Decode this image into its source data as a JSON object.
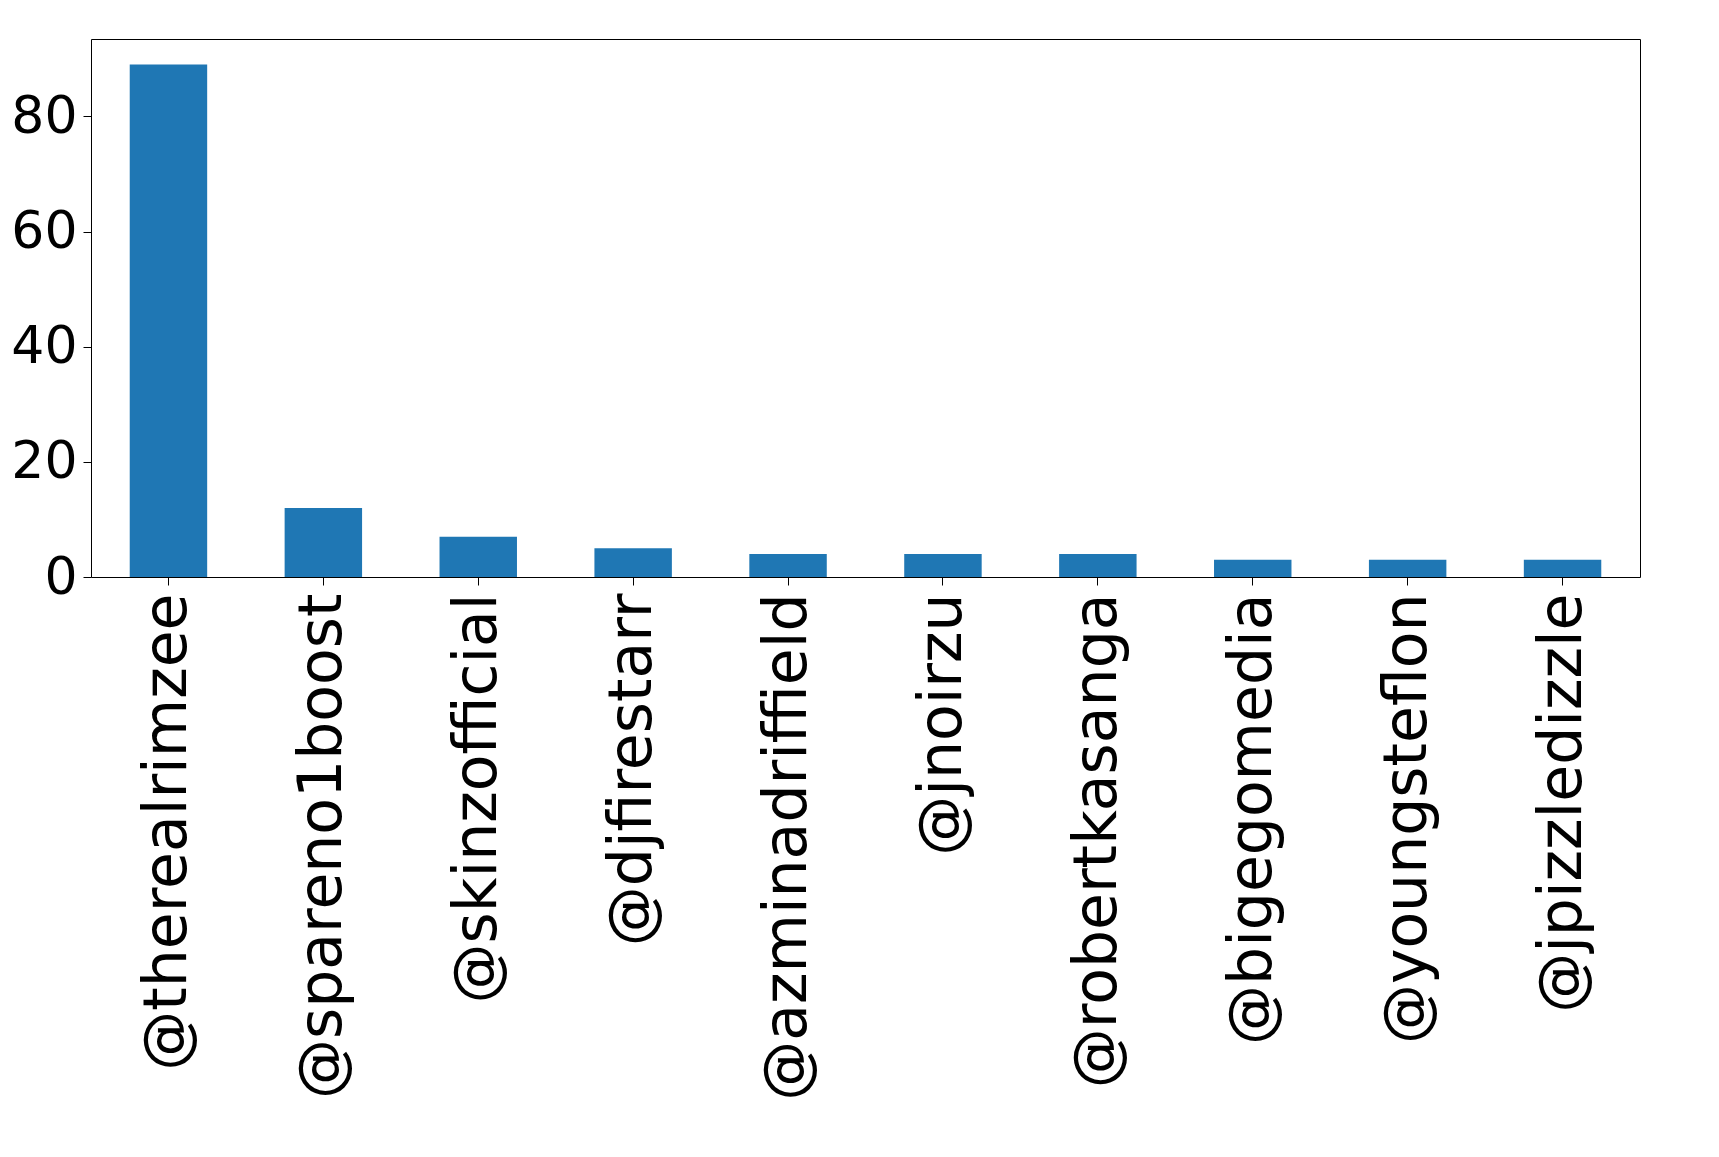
{
  "chart_data": {
    "type": "bar",
    "categories": [
      "@therealrimzee",
      "@spareno1boost",
      "@skinzofficial",
      "@djfirestarr",
      "@azminadriffield",
      "@jnoirzu",
      "@robertkasanga",
      "@bigegomedia",
      "@youngsteflon",
      "@jpizzledizzle"
    ],
    "values": [
      89,
      12,
      7,
      5,
      4,
      4,
      4,
      3,
      3,
      3
    ],
    "color": "#1f77b4",
    "ylim": [
      0,
      93.45
    ],
    "yticks": [
      0,
      20,
      40,
      60,
      80
    ],
    "grid": false
  }
}
